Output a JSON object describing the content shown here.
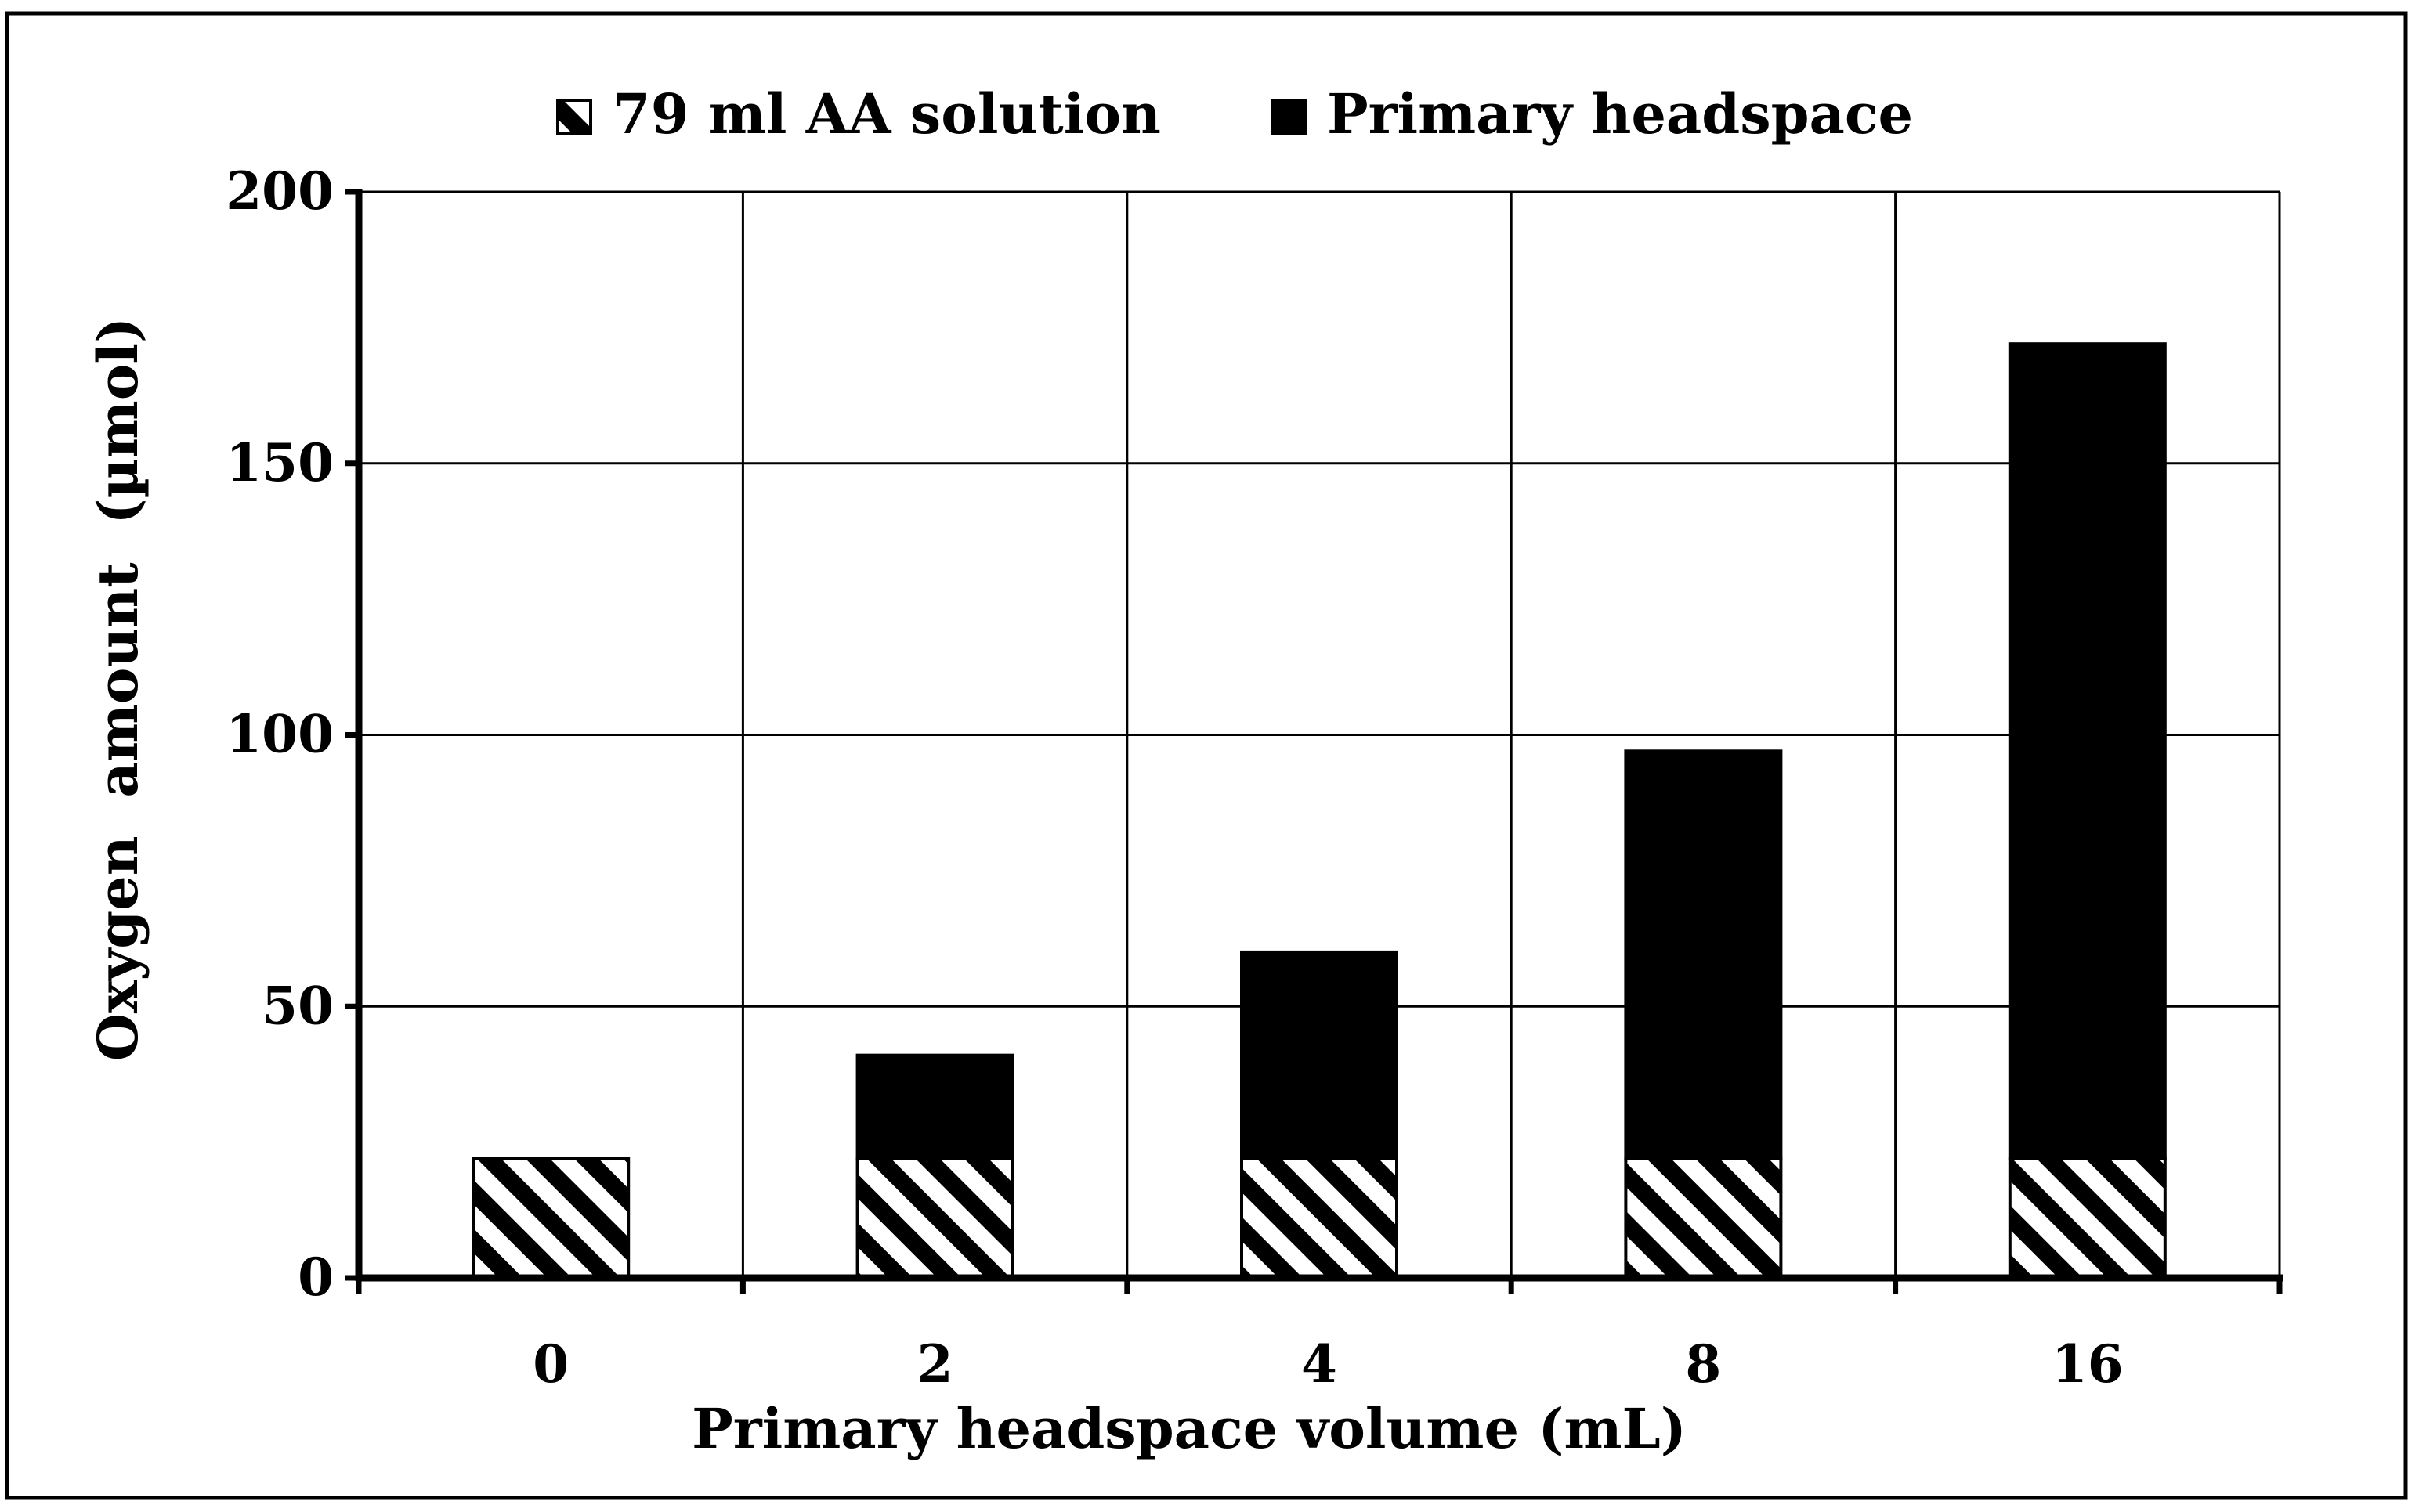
{
  "chart_data": {
    "type": "bar",
    "stacked": true,
    "categories": [
      "0",
      "2",
      "4",
      "8",
      "16"
    ],
    "series": [
      {
        "name": "79 ml AA solution",
        "values": [
          22,
          22,
          22,
          22,
          22
        ],
        "pattern": "diagonal-hatch"
      },
      {
        "name": "Primary headspace",
        "values": [
          0,
          19,
          38,
          75,
          150
        ],
        "color": "#000000"
      }
    ],
    "xlabel": "Primary headspace volume (mL)",
    "ylabel": "Oxygen  amount  (µmol)",
    "ylim": [
      0,
      200
    ],
    "yticks": [
      "0",
      "50",
      "100",
      "150",
      "200"
    ],
    "yticks_values": [
      0,
      50,
      100,
      150,
      200
    ],
    "grid": true,
    "legend_position": "top-center"
  }
}
